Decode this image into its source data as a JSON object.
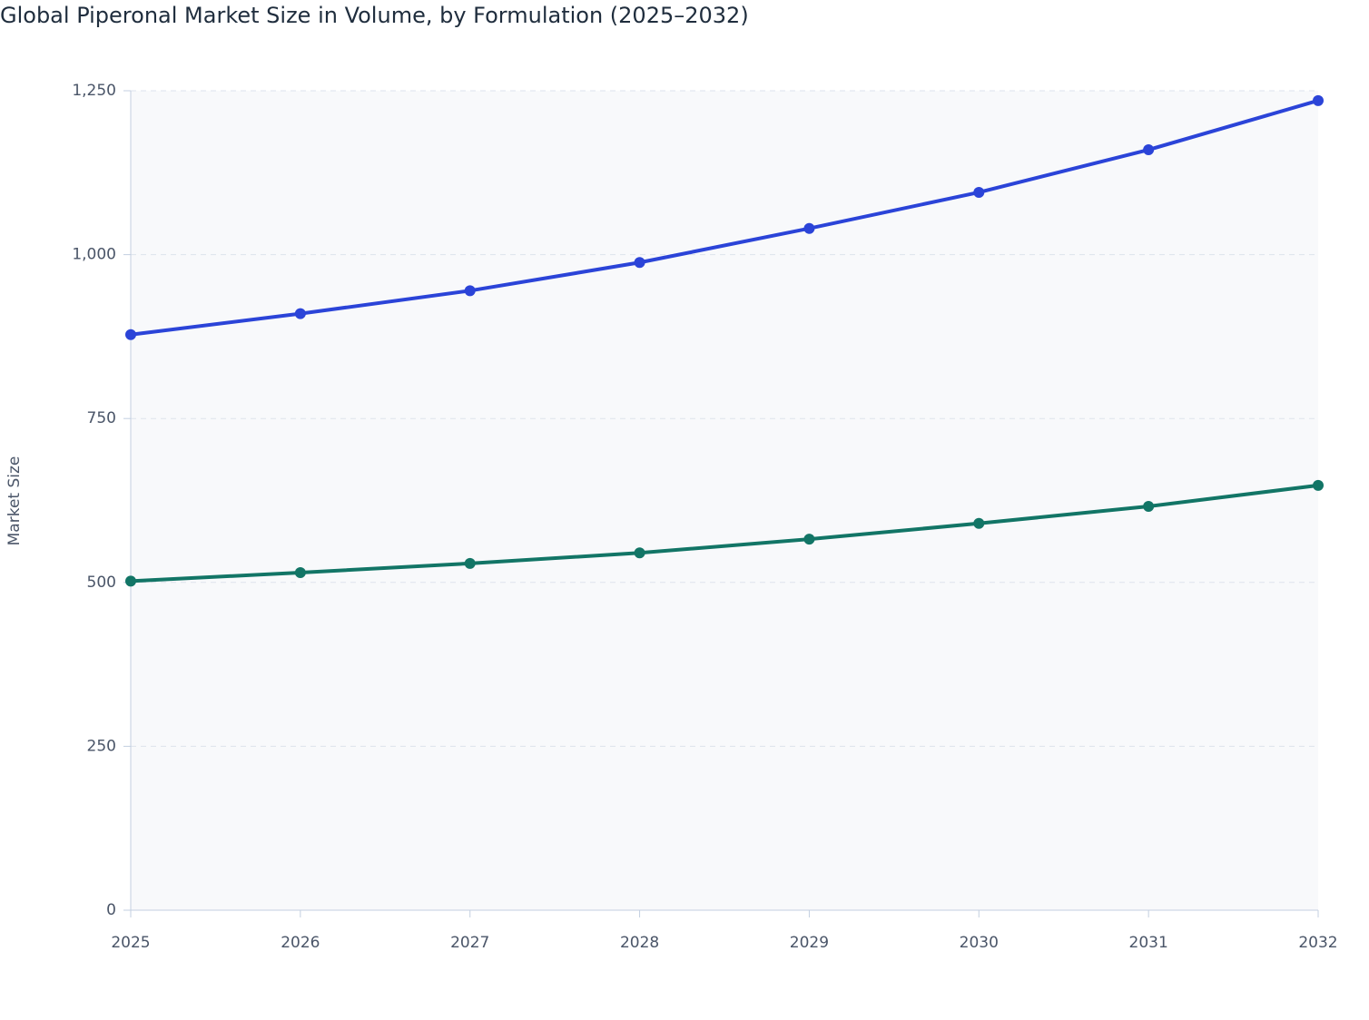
{
  "chart_data": {
    "type": "line",
    "title": "Global Piperonal Market Size in Volume, by Formulation (2025–2032)",
    "y_label": "Market Size",
    "categories": [
      "2025",
      "2026",
      "2027",
      "2028",
      "2029",
      "2030",
      "2031",
      "2032"
    ],
    "series": [
      {
        "color": "#2b44d8",
        "values": [
          878,
          910,
          945,
          988,
          1040,
          1095,
          1160,
          1235
        ]
      },
      {
        "color": "#127566",
        "values": [
          502,
          515,
          529,
          545,
          566,
          590,
          616,
          648
        ]
      }
    ],
    "ylim": [
      0,
      1250
    ],
    "yticks": [
      0,
      250,
      500,
      750,
      {
        "value": 1000,
        "label": "1,000"
      },
      {
        "value": 1250,
        "label": "1,250"
      }
    ],
    "grid": true
  }
}
